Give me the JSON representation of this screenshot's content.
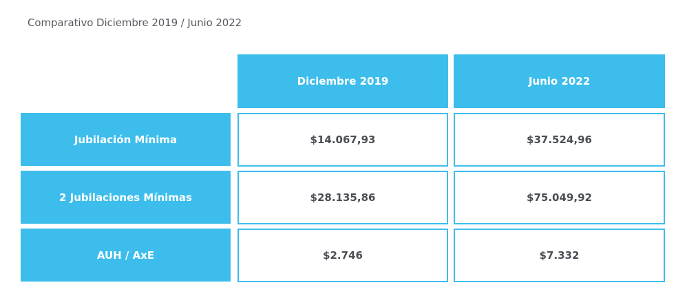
{
  "caption": "Comparativo Diciembre 2019 / Junio 2022",
  "table": {
    "columns": [
      "Diciembre 2019",
      "Junio 2022"
    ],
    "rows": [
      {
        "label": "Jubilación Mínima",
        "values": [
          "$14.067,93",
          "$37.524,96"
        ]
      },
      {
        "label": "2 Jubilaciones Mínimas",
        "values": [
          "$28.135,86",
          "$75.049,92"
        ]
      },
      {
        "label": "AUH / AxE",
        "values": [
          "$2.746",
          "$7.332"
        ]
      }
    ]
  },
  "colors": {
    "accent": "#3dbdec",
    "value_text": "#4a4e54",
    "caption_text": "#555a60"
  }
}
